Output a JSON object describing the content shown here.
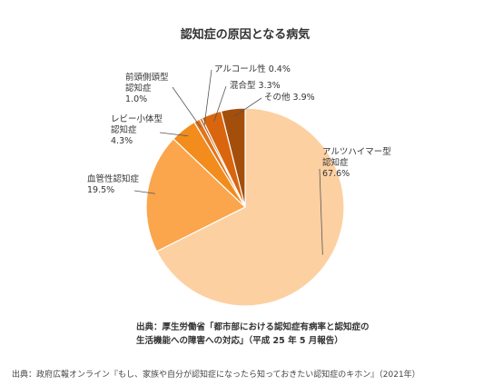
{
  "chart_data": {
    "type": "pie",
    "title": "認知症の原因となる病気",
    "slices": [
      {
        "name": "アルツハイマー型認知症",
        "label_lines": [
          "アルツハイマー型",
          "認知症"
        ],
        "value": 67.6,
        "value_label": "67.6%",
        "color": "#FDD0A2"
      },
      {
        "name": "血管性認知症",
        "label_lines": [
          "血管性認知症"
        ],
        "value": 19.5,
        "value_label": "19.5%",
        "color": "#FBA54D"
      },
      {
        "name": "レビー小体型認知症",
        "label_lines": [
          "レビー小体型",
          "認知症"
        ],
        "value": 4.3,
        "value_label": "4.3%",
        "color": "#F28C1C"
      },
      {
        "name": "前頭側頭型認知症",
        "label_lines": [
          "前頭側頭型",
          "認知症"
        ],
        "value": 1.0,
        "value_label": "1.0%",
        "color": "#E2741A"
      },
      {
        "name": "アルコール性",
        "label_lines": [
          "アルコール性"
        ],
        "value": 0.4,
        "value_label": "0.4%",
        "color": "#B45C1E"
      },
      {
        "name": "混合型",
        "label_lines": [
          "混合型"
        ],
        "value": 3.3,
        "value_label": "3.3%",
        "color": "#D9660E"
      },
      {
        "name": "その他",
        "label_lines": [
          "その他"
        ],
        "value": 3.9,
        "value_label": "3.9%",
        "color": "#A44E0C"
      }
    ]
  },
  "source_note": {
    "line1": "出典：厚生労働省「都市部における認知症有病率と認知症の",
    "line2": "生活機能への障害への対応」（平成 25 年 5 月報告）"
  },
  "footer_note": "出典：政府広報オンライン『もし、家族や自分が認知症になったら知っておきたい認知症のキホン』（2021年）"
}
